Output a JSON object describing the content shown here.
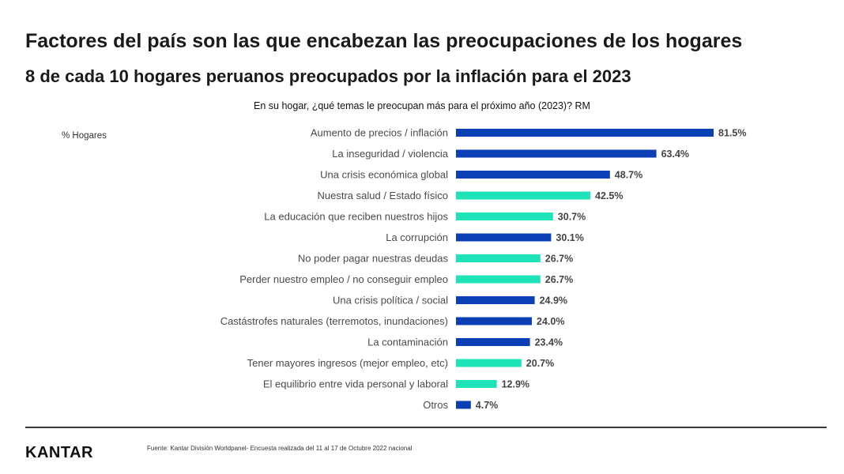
{
  "header": {
    "title": "Factores del país son las que encabezan las preocupaciones de los hogares",
    "subtitle": "8 de cada 10 hogares peruanos preocupados por la inflación para el 2023"
  },
  "chart_data": {
    "type": "bar",
    "orientation": "horizontal",
    "title": "En su hogar, ¿qué temas le preocupan más para el próximo año (2023)? RM",
    "unit_label": "% Hogares",
    "value_suffix": "%",
    "xlim": [
      0,
      100
    ],
    "grid": false,
    "colors": {
      "dark_blue": "#0a3fb5",
      "turquoise": "#1ee3b9"
    },
    "categories": [
      "Aumento de precios / inflación",
      "La inseguridad / violencia",
      "Una crisis económica global",
      "Nuestra salud / Estado físico",
      "La educación que reciben nuestros hijos",
      "La corrupción",
      "No poder pagar nuestras deudas",
      "Perder nuestro empleo / no conseguir empleo",
      "Una crisis política / social",
      "Castástrofes naturales (terremotos, inundaciones)",
      "La contaminación",
      "Tener mayores ingresos (mejor empleo, etc)",
      "El equilibrio entre vida personal y laboral",
      "Otros"
    ],
    "values": [
      81.5,
      63.4,
      48.7,
      42.5,
      30.7,
      30.1,
      26.7,
      26.7,
      24.9,
      24.0,
      23.4,
      20.7,
      12.9,
      4.7
    ],
    "value_labels": [
      "81.5%",
      "63.4%",
      "48.7%",
      "42.5%",
      "30.7%",
      "30.1%",
      "26.7%",
      "26.7%",
      "24.9%",
      "24.0%",
      "23.4%",
      "20.7%",
      "12.9%",
      "4.7%"
    ],
    "bar_colors": [
      "dark_blue",
      "dark_blue",
      "dark_blue",
      "turquoise",
      "turquoise",
      "dark_blue",
      "turquoise",
      "turquoise",
      "dark_blue",
      "dark_blue",
      "dark_blue",
      "turquoise",
      "turquoise",
      "dark_blue"
    ]
  },
  "footer": {
    "logo": "KANTAR",
    "source": "Fuente: Kantar División Worldpanel- Encuesta realizada del 11 al 17 de Octubre 2022 nacional"
  }
}
